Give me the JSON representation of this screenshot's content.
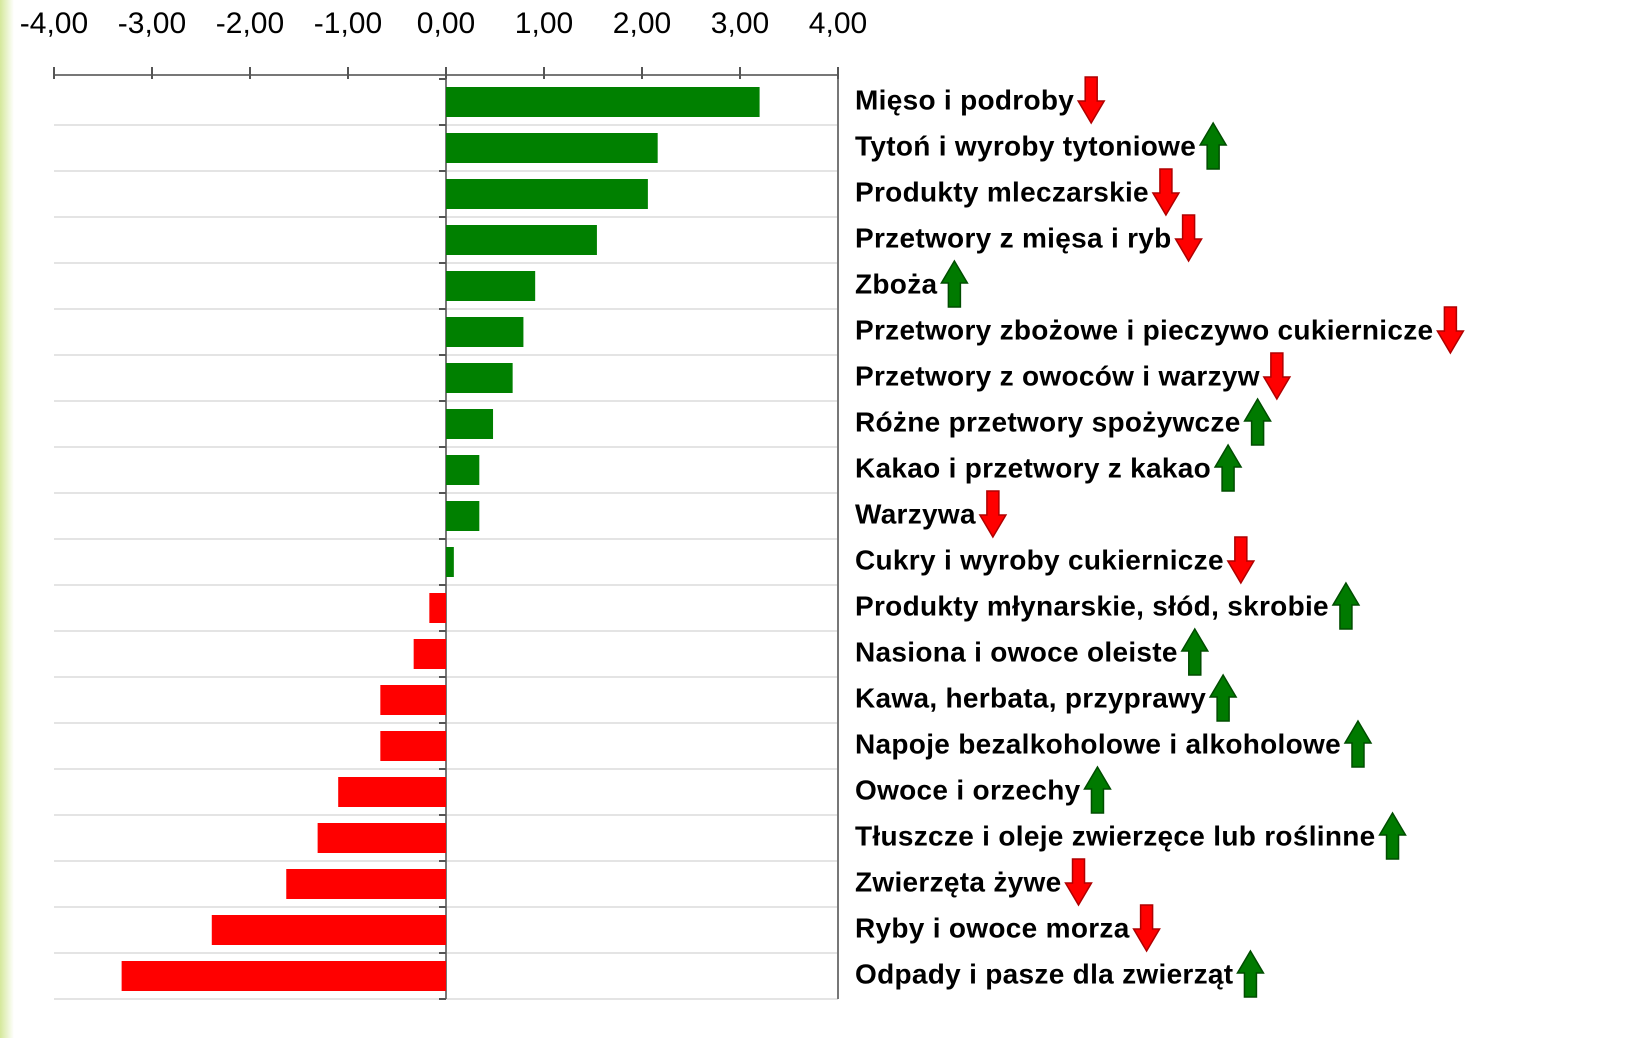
{
  "chart_data": {
    "type": "barh",
    "categories": [
      "Mięso i podroby",
      "Tytoń i wyroby tytoniowe",
      "Produkty mleczarskie",
      "Przetwory z mięsa i ryb",
      "Zboża",
      "Przetwory zbożowe i pieczywo cukiernicze",
      "Przetwory z owoców i warzyw",
      "Różne przetwory spożywcze",
      "Kakao i przetwory z kakao",
      "Warzywa",
      "Cukry i wyroby cukiernicze",
      "Produkty młynarskie, słód, skrobie",
      "Nasiona i owoce oleiste",
      "Kawa, herbata, przyprawy",
      "Napoje bezalkoholowe i alkoholowe",
      "Owoce i orzechy",
      "Tłuszcze i oleje zwierzęce lub roślinne",
      "Zwierzęta żywe",
      "Ryby i owoce morza",
      "Odpady i pasze dla zwierząt"
    ],
    "values": [
      3.2,
      2.16,
      2.06,
      1.54,
      0.91,
      0.79,
      0.68,
      0.48,
      0.34,
      0.34,
      0.08,
      -0.17,
      -0.33,
      -0.67,
      -0.67,
      -1.1,
      -1.31,
      -1.63,
      -2.39,
      -3.31
    ],
    "trends": [
      "down",
      "up",
      "down",
      "down",
      "up",
      "down",
      "down",
      "up",
      "up",
      "down",
      "down",
      "up",
      "up",
      "up",
      "up",
      "up",
      "up",
      "down",
      "down",
      "up"
    ],
    "positive_color": "#008000",
    "negative_color": "#ff0000",
    "trend_colors": {
      "up": "#007a00",
      "down": "#ff0000"
    },
    "xlim": [
      -4,
      4
    ],
    "xticks": [
      {
        "value": -4,
        "label": "-4,00"
      },
      {
        "value": -3,
        "label": "-3,00"
      },
      {
        "value": -2,
        "label": "-2,00"
      },
      {
        "value": -1,
        "label": "-1,00"
      },
      {
        "value": 0,
        "label": "0,00"
      },
      {
        "value": 1,
        "label": "1,00"
      },
      {
        "value": 2,
        "label": "2,00"
      },
      {
        "value": 3,
        "label": "3,00"
      },
      {
        "value": 4,
        "label": "4,00"
      }
    ],
    "grid": true
  }
}
